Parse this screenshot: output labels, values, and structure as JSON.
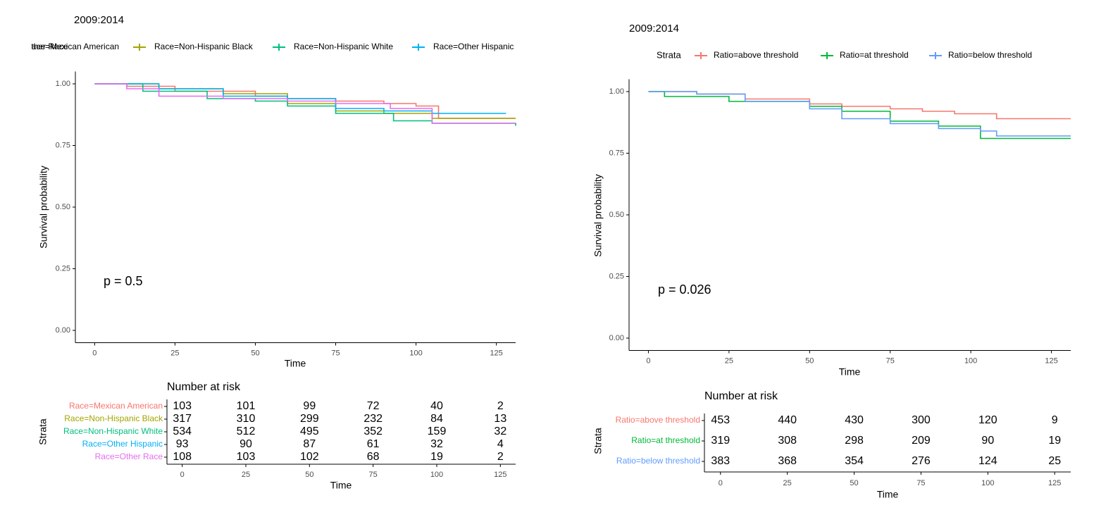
{
  "chart_data": [
    {
      "type": "line",
      "title": "2009:2014",
      "xlabel": "Time",
      "ylabel": "Survival probability",
      "annotation": "p = 0.5",
      "xlim": [
        -6,
        131
      ],
      "ylim": [
        -0.05,
        1.05
      ],
      "xticks": [
        0,
        25,
        50,
        75,
        100,
        125
      ],
      "yticks": [
        {
          "value": 0,
          "label": "0.00"
        },
        0.25,
        {
          "value": 0.5,
          "label": "0.50"
        },
        0.75,
        {
          "value": 1,
          "label": "1.00"
        }
      ],
      "series": [
        {
          "name": "Race=Mexican American",
          "color": "#F8766D",
          "x": [
            0,
            10,
            25,
            50,
            60,
            75,
            90,
            100,
            107,
            131
          ],
          "values": [
            1,
            0.99,
            0.97,
            0.95,
            0.94,
            0.93,
            0.92,
            0.91,
            0.86,
            0.86
          ]
        },
        {
          "name": "Race=Non-Hispanic Black",
          "color": "#A3A500",
          "x": [
            0,
            20,
            40,
            60,
            75,
            90,
            105,
            131
          ],
          "values": [
            1,
            0.98,
            0.96,
            0.92,
            0.89,
            0.88,
            0.86,
            0.86
          ]
        },
        {
          "name": "Race=Non-Hispanic White",
          "color": "#00BF7D",
          "x": [
            0,
            15,
            35,
            50,
            60,
            75,
            93,
            105,
            131
          ],
          "values": [
            1,
            0.97,
            0.94,
            0.93,
            0.91,
            0.88,
            0.85,
            0.84,
            0.83
          ]
        },
        {
          "name": "Race=Other Hispanic",
          "color": "#00B0F6",
          "x": [
            0,
            20,
            40,
            60,
            75,
            90,
            105,
            128
          ],
          "values": [
            1,
            0.98,
            0.95,
            0.94,
            0.9,
            0.89,
            0.88,
            0.88
          ]
        },
        {
          "name": "Race=Other Race",
          "color": "#E76BF3",
          "x": [
            0,
            10,
            20,
            40,
            60,
            75,
            92,
            105,
            131
          ],
          "values": [
            1,
            0.98,
            0.95,
            0.94,
            0.93,
            0.92,
            0.9,
            0.84,
            0.84
          ]
        }
      ],
      "risk_table": {
        "title": "Number at risk",
        "ylabel": "Strata",
        "xlabel": "Time",
        "xlim": [
          -6,
          131
        ],
        "xticks": [
          0,
          25,
          50,
          75,
          100,
          125
        ],
        "rows": [
          {
            "name": "Race=Mexican American",
            "color": "#F8766D",
            "values": [
              103,
              101,
              99,
              72,
              40,
              2
            ]
          },
          {
            "name": "Race=Non-Hispanic Black",
            "color": "#A3A500",
            "values": [
              317,
              310,
              299,
              232,
              84,
              13
            ]
          },
          {
            "name": "Race=Non-Hispanic White",
            "color": "#00BF7D",
            "values": [
              534,
              512,
              495,
              352,
              159,
              32
            ]
          },
          {
            "name": "Race=Other Hispanic",
            "color": "#00B0F6",
            "values": [
              93,
              90,
              87,
              61,
              32,
              4
            ]
          },
          {
            "name": "Race=Other Race",
            "color": "#E76BF3",
            "values": [
              108,
              103,
              102,
              68,
              19,
              2
            ]
          }
        ]
      }
    },
    {
      "type": "line",
      "title": "2009:2014",
      "legend_title": "Strata",
      "xlabel": "Time",
      "ylabel": "Survival probability",
      "annotation": "p = 0.026",
      "xlim": [
        -6,
        131
      ],
      "ylim": [
        -0.05,
        1.05
      ],
      "xticks": [
        0,
        25,
        50,
        75,
        100,
        125
      ],
      "yticks": [
        {
          "value": 0,
          "label": "0.00"
        },
        0.25,
        {
          "value": 0.5,
          "label": "0.50"
        },
        0.75,
        {
          "value": 1,
          "label": "1.00"
        }
      ],
      "series": [
        {
          "name": "Ratio=above threshold",
          "color": "#F8766D",
          "x": [
            0,
            15,
            30,
            50,
            60,
            75,
            85,
            95,
            108,
            131
          ],
          "values": [
            1,
            0.99,
            0.97,
            0.95,
            0.94,
            0.93,
            0.92,
            0.91,
            0.89,
            0.89
          ]
        },
        {
          "name": "Ratio=at threshold",
          "color": "#00BA38",
          "x": [
            0,
            5,
            25,
            50,
            60,
            75,
            90,
            103,
            131
          ],
          "values": [
            1,
            0.98,
            0.96,
            0.94,
            0.92,
            0.88,
            0.86,
            0.81,
            0.81
          ]
        },
        {
          "name": "Ratio=below threshold",
          "color": "#619CFF",
          "x": [
            0,
            15,
            30,
            50,
            60,
            75,
            90,
            103,
            108,
            131
          ],
          "values": [
            1,
            0.99,
            0.96,
            0.93,
            0.89,
            0.87,
            0.85,
            0.84,
            0.82,
            0.82
          ]
        }
      ],
      "risk_table": {
        "title": "Number at risk",
        "ylabel": "Strata",
        "xlabel": "Time",
        "xlim": [
          -6,
          131
        ],
        "xticks": [
          0,
          25,
          50,
          75,
          100,
          125
        ],
        "rows": [
          {
            "name": "Ratio=above threshold",
            "color": "#F8766D",
            "values": [
              453,
              440,
              430,
              300,
              120,
              9
            ]
          },
          {
            "name": "Ratio=at threshold",
            "color": "#00BA38",
            "values": [
              319,
              308,
              298,
              209,
              90,
              19
            ]
          },
          {
            "name": "Ratio=below threshold",
            "color": "#619CFF",
            "values": [
              383,
              368,
              354,
              276,
              124,
              25
            ]
          }
        ]
      }
    }
  ]
}
